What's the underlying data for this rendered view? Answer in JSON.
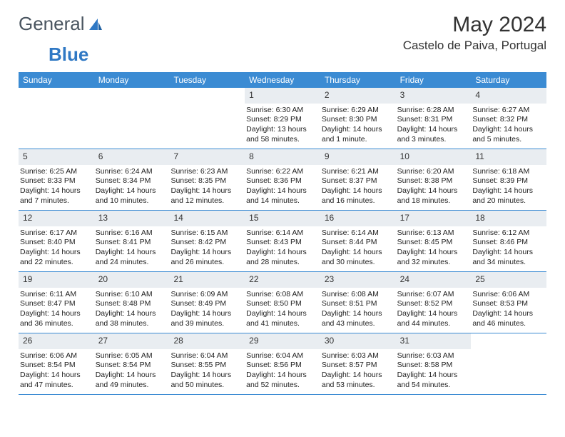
{
  "logo": {
    "part1": "General",
    "part2": "Blue"
  },
  "title": "May 2024",
  "location": "Castelo de Paiva, Portugal",
  "colors": {
    "header_bg": "#3b8bd3",
    "header_fg": "#ffffff",
    "daynum_bg": "#e9edf1",
    "rule": "#3b8bd3",
    "logo_text": "#4a5560",
    "logo_blue": "#2f78c4"
  },
  "daysOfWeek": [
    "Sunday",
    "Monday",
    "Tuesday",
    "Wednesday",
    "Thursday",
    "Friday",
    "Saturday"
  ],
  "weeks": [
    [
      {
        "n": "",
        "lines": []
      },
      {
        "n": "",
        "lines": []
      },
      {
        "n": "",
        "lines": []
      },
      {
        "n": "1",
        "lines": [
          "Sunrise: 6:30 AM",
          "Sunset: 8:29 PM",
          "Daylight: 13 hours and 58 minutes."
        ]
      },
      {
        "n": "2",
        "lines": [
          "Sunrise: 6:29 AM",
          "Sunset: 8:30 PM",
          "Daylight: 14 hours and 1 minute."
        ]
      },
      {
        "n": "3",
        "lines": [
          "Sunrise: 6:28 AM",
          "Sunset: 8:31 PM",
          "Daylight: 14 hours and 3 minutes."
        ]
      },
      {
        "n": "4",
        "lines": [
          "Sunrise: 6:27 AM",
          "Sunset: 8:32 PM",
          "Daylight: 14 hours and 5 minutes."
        ]
      }
    ],
    [
      {
        "n": "5",
        "lines": [
          "Sunrise: 6:25 AM",
          "Sunset: 8:33 PM",
          "Daylight: 14 hours and 7 minutes."
        ]
      },
      {
        "n": "6",
        "lines": [
          "Sunrise: 6:24 AM",
          "Sunset: 8:34 PM",
          "Daylight: 14 hours and 10 minutes."
        ]
      },
      {
        "n": "7",
        "lines": [
          "Sunrise: 6:23 AM",
          "Sunset: 8:35 PM",
          "Daylight: 14 hours and 12 minutes."
        ]
      },
      {
        "n": "8",
        "lines": [
          "Sunrise: 6:22 AM",
          "Sunset: 8:36 PM",
          "Daylight: 14 hours and 14 minutes."
        ]
      },
      {
        "n": "9",
        "lines": [
          "Sunrise: 6:21 AM",
          "Sunset: 8:37 PM",
          "Daylight: 14 hours and 16 minutes."
        ]
      },
      {
        "n": "10",
        "lines": [
          "Sunrise: 6:20 AM",
          "Sunset: 8:38 PM",
          "Daylight: 14 hours and 18 minutes."
        ]
      },
      {
        "n": "11",
        "lines": [
          "Sunrise: 6:18 AM",
          "Sunset: 8:39 PM",
          "Daylight: 14 hours and 20 minutes."
        ]
      }
    ],
    [
      {
        "n": "12",
        "lines": [
          "Sunrise: 6:17 AM",
          "Sunset: 8:40 PM",
          "Daylight: 14 hours and 22 minutes."
        ]
      },
      {
        "n": "13",
        "lines": [
          "Sunrise: 6:16 AM",
          "Sunset: 8:41 PM",
          "Daylight: 14 hours and 24 minutes."
        ]
      },
      {
        "n": "14",
        "lines": [
          "Sunrise: 6:15 AM",
          "Sunset: 8:42 PM",
          "Daylight: 14 hours and 26 minutes."
        ]
      },
      {
        "n": "15",
        "lines": [
          "Sunrise: 6:14 AM",
          "Sunset: 8:43 PM",
          "Daylight: 14 hours and 28 minutes."
        ]
      },
      {
        "n": "16",
        "lines": [
          "Sunrise: 6:14 AM",
          "Sunset: 8:44 PM",
          "Daylight: 14 hours and 30 minutes."
        ]
      },
      {
        "n": "17",
        "lines": [
          "Sunrise: 6:13 AM",
          "Sunset: 8:45 PM",
          "Daylight: 14 hours and 32 minutes."
        ]
      },
      {
        "n": "18",
        "lines": [
          "Sunrise: 6:12 AM",
          "Sunset: 8:46 PM",
          "Daylight: 14 hours and 34 minutes."
        ]
      }
    ],
    [
      {
        "n": "19",
        "lines": [
          "Sunrise: 6:11 AM",
          "Sunset: 8:47 PM",
          "Daylight: 14 hours and 36 minutes."
        ]
      },
      {
        "n": "20",
        "lines": [
          "Sunrise: 6:10 AM",
          "Sunset: 8:48 PM",
          "Daylight: 14 hours and 38 minutes."
        ]
      },
      {
        "n": "21",
        "lines": [
          "Sunrise: 6:09 AM",
          "Sunset: 8:49 PM",
          "Daylight: 14 hours and 39 minutes."
        ]
      },
      {
        "n": "22",
        "lines": [
          "Sunrise: 6:08 AM",
          "Sunset: 8:50 PM",
          "Daylight: 14 hours and 41 minutes."
        ]
      },
      {
        "n": "23",
        "lines": [
          "Sunrise: 6:08 AM",
          "Sunset: 8:51 PM",
          "Daylight: 14 hours and 43 minutes."
        ]
      },
      {
        "n": "24",
        "lines": [
          "Sunrise: 6:07 AM",
          "Sunset: 8:52 PM",
          "Daylight: 14 hours and 44 minutes."
        ]
      },
      {
        "n": "25",
        "lines": [
          "Sunrise: 6:06 AM",
          "Sunset: 8:53 PM",
          "Daylight: 14 hours and 46 minutes."
        ]
      }
    ],
    [
      {
        "n": "26",
        "lines": [
          "Sunrise: 6:06 AM",
          "Sunset: 8:54 PM",
          "Daylight: 14 hours and 47 minutes."
        ]
      },
      {
        "n": "27",
        "lines": [
          "Sunrise: 6:05 AM",
          "Sunset: 8:54 PM",
          "Daylight: 14 hours and 49 minutes."
        ]
      },
      {
        "n": "28",
        "lines": [
          "Sunrise: 6:04 AM",
          "Sunset: 8:55 PM",
          "Daylight: 14 hours and 50 minutes."
        ]
      },
      {
        "n": "29",
        "lines": [
          "Sunrise: 6:04 AM",
          "Sunset: 8:56 PM",
          "Daylight: 14 hours and 52 minutes."
        ]
      },
      {
        "n": "30",
        "lines": [
          "Sunrise: 6:03 AM",
          "Sunset: 8:57 PM",
          "Daylight: 14 hours and 53 minutes."
        ]
      },
      {
        "n": "31",
        "lines": [
          "Sunrise: 6:03 AM",
          "Sunset: 8:58 PM",
          "Daylight: 14 hours and 54 minutes."
        ]
      },
      {
        "n": "",
        "lines": []
      }
    ]
  ]
}
